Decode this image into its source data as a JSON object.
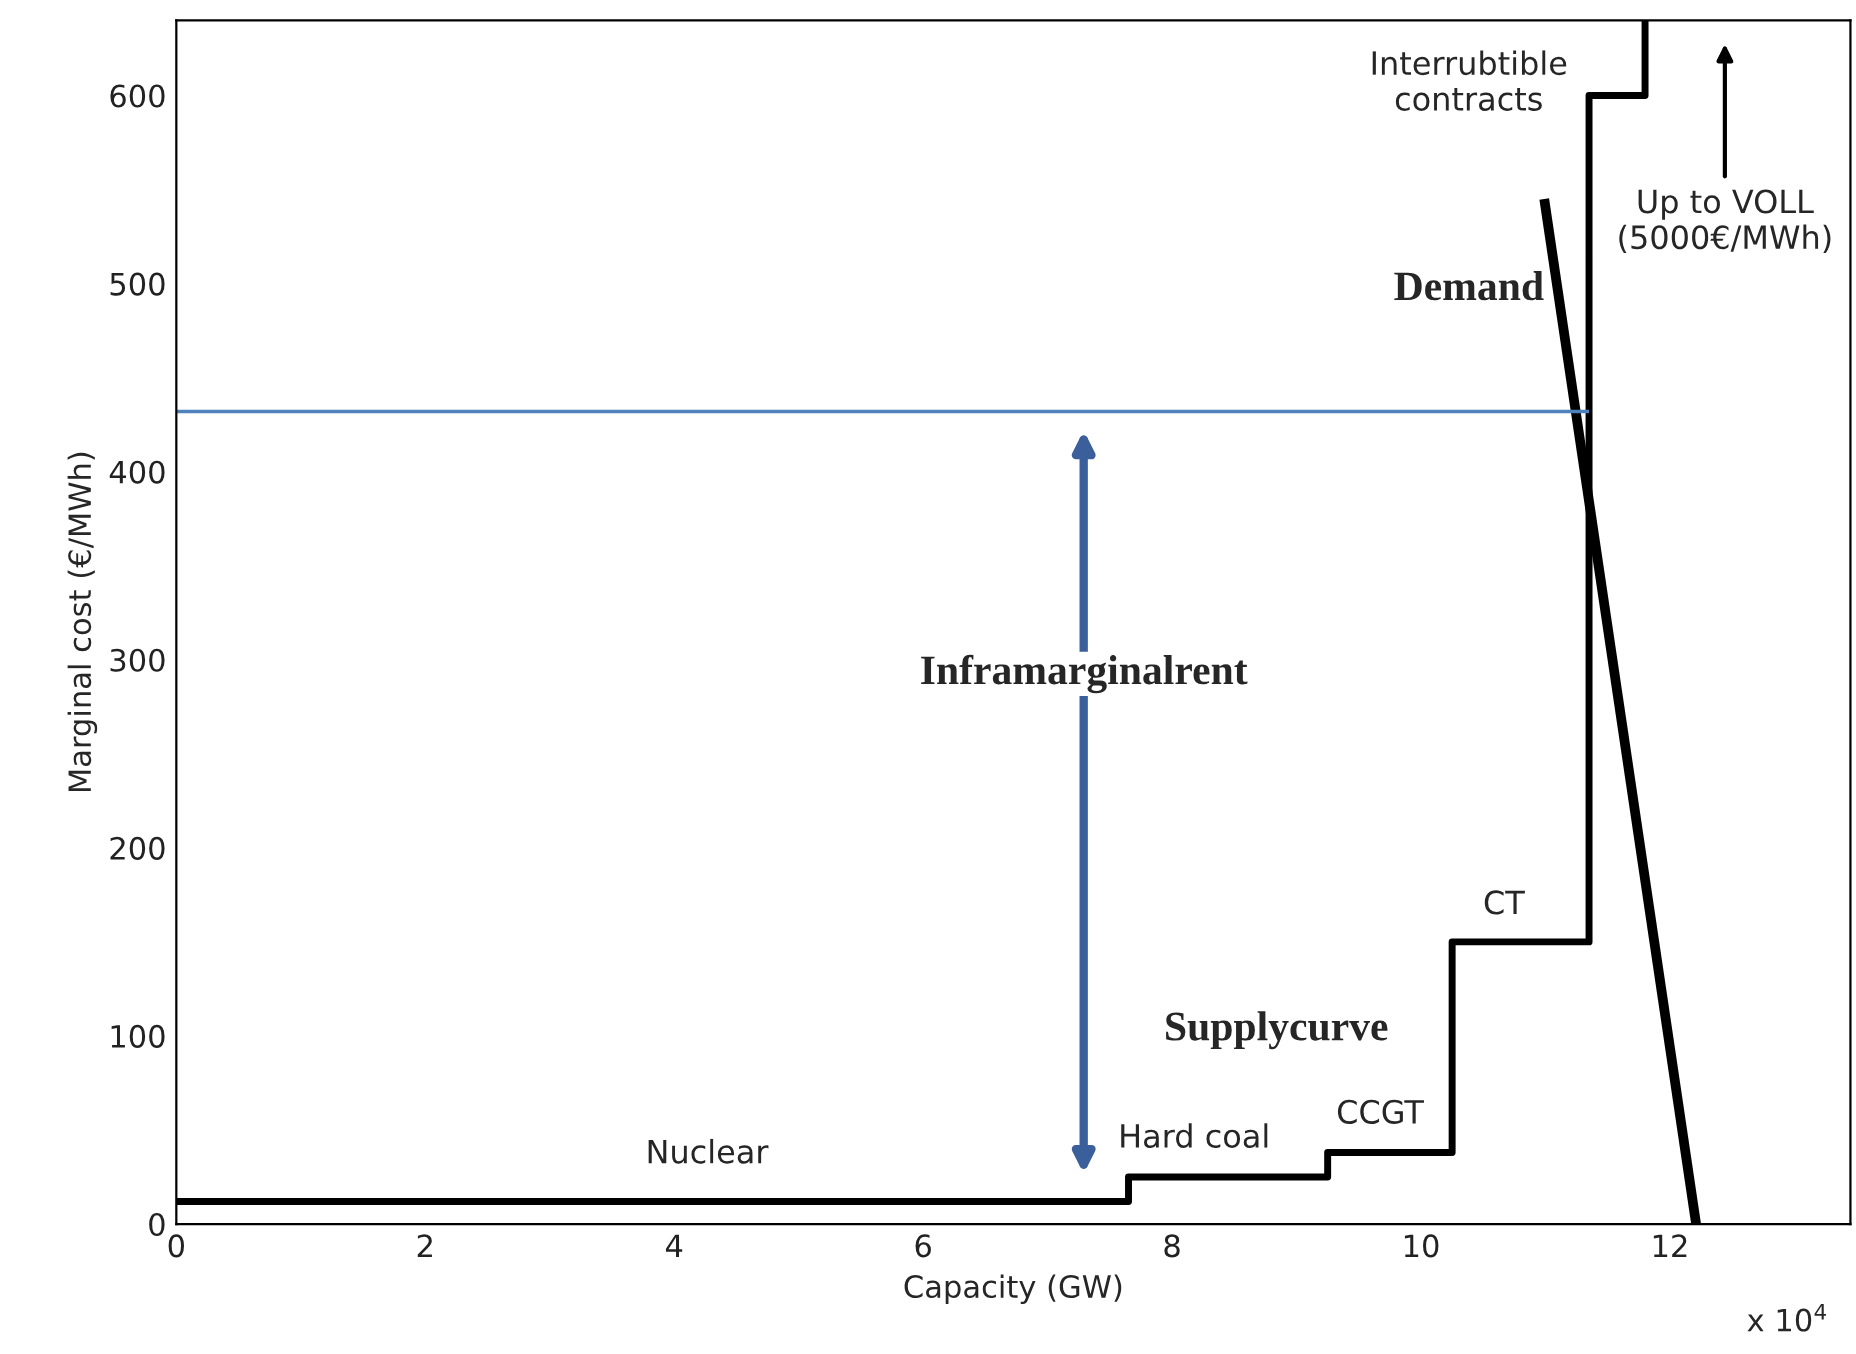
{
  "chart_data": {
    "type": "step",
    "xlabel": "Capacity (GW)",
    "ylabel": "Marginal cost (€/MWh)",
    "xlim": [
      0,
      13.45
    ],
    "xticks": [
      0,
      2,
      4,
      6,
      8,
      10,
      12
    ],
    "ylim": [
      0,
      640
    ],
    "yticks": [
      0,
      100,
      200,
      300,
      400,
      500,
      600
    ],
    "grid": false,
    "series": [
      {
        "color": "#000000",
        "x": [
          0,
          7.65,
          9.25,
          10.25,
          11.35,
          11.8
        ],
        "values": [
          12,
          25,
          38,
          150,
          600,
          640
        ]
      },
      {
        "type": "line",
        "color": "#000000",
        "x": [
          10.99,
          12.21
        ],
        "values": [
          545,
          0
        ]
      },
      {
        "type": "line",
        "color": "#4f81bd",
        "x": [
          0,
          11.35
        ],
        "values": [
          432,
          432
        ]
      }
    ],
    "annotations": [
      "Nuclear",
      "Hard coal",
      "CCGT",
      "CT",
      "Interrubtible\ncontracts",
      "Up to VOLL\n(5000€/MWh)",
      "Supplycurve",
      "Demand",
      "Inframarginalrent",
      "x 10$^{4}$"
    ]
  }
}
